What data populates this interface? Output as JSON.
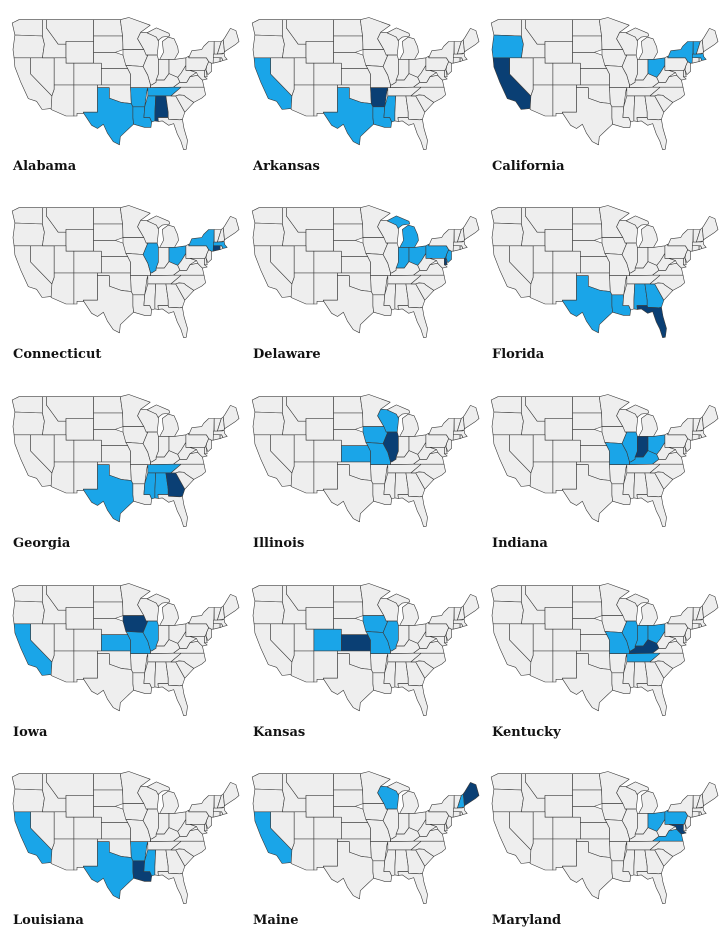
{
  "colors": {
    "base": "#eeeeee",
    "border": "#3a3a3a",
    "highlight": "#0a3f74",
    "similar": "#1aa5e8"
  },
  "maps": [
    {
      "label": "Alabama",
      "highlight": "AL",
      "similar": [
        "TX",
        "LA",
        "MS",
        "AR",
        "TN"
      ]
    },
    {
      "label": "Arkansas",
      "highlight": "AR",
      "similar": [
        "CA",
        "TX",
        "LA",
        "MS"
      ]
    },
    {
      "label": "California",
      "highlight": "CA",
      "similar": [
        "OR",
        "OH",
        "NY",
        "MA",
        "VT"
      ]
    },
    {
      "label": "Connecticut",
      "highlight": "CT",
      "similar": [
        "IL",
        "OH",
        "NY",
        "MA"
      ]
    },
    {
      "label": "Delaware",
      "highlight": "DE",
      "similar": [
        "IN",
        "OH",
        "PA",
        "NJ",
        "MI"
      ]
    },
    {
      "label": "Florida",
      "highlight": "FL",
      "similar": [
        "TX",
        "LA",
        "AL",
        "GA"
      ]
    },
    {
      "label": "Georgia",
      "highlight": "GA",
      "similar": [
        "TX",
        "MS",
        "AL",
        "TN"
      ]
    },
    {
      "label": "Illinois",
      "highlight": "IL",
      "similar": [
        "KS",
        "MO",
        "IA",
        "WI"
      ]
    },
    {
      "label": "Indiana",
      "highlight": "IN",
      "similar": [
        "MO",
        "IL",
        "OH",
        "KY"
      ]
    },
    {
      "label": "Iowa",
      "highlight": "IA",
      "similar": [
        "CA",
        "KS",
        "MO",
        "IL"
      ]
    },
    {
      "label": "Kansas",
      "highlight": "KS",
      "similar": [
        "CO",
        "MO",
        "IA",
        "IL"
      ]
    },
    {
      "label": "Kentucky",
      "highlight": "KY",
      "similar": [
        "MO",
        "IL",
        "IN",
        "OH",
        "TN"
      ]
    },
    {
      "label": "Louisiana",
      "highlight": "LA",
      "similar": [
        "CA",
        "TX",
        "AR",
        "MS"
      ]
    },
    {
      "label": "Maine",
      "highlight": "ME",
      "similar": [
        "CA",
        "WI",
        "NH"
      ]
    },
    {
      "label": "Maryland",
      "highlight": "MD",
      "similar": [
        "OH",
        "PA",
        "VA"
      ]
    }
  ]
}
